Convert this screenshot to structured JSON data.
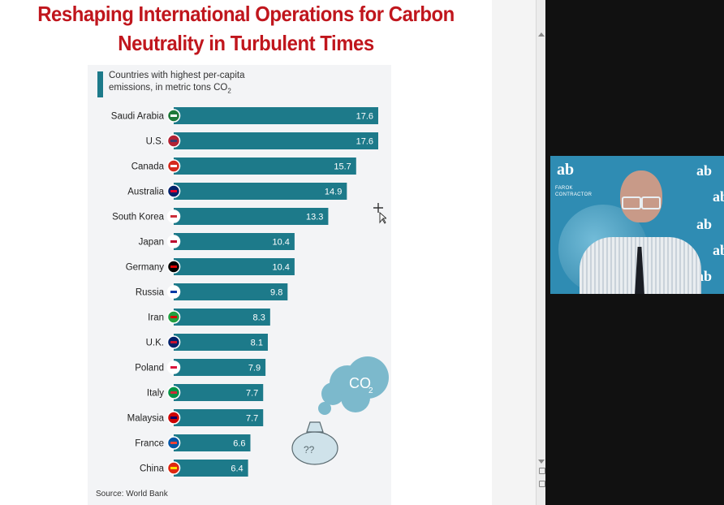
{
  "slide": {
    "title_line1": "Reshaping International Operations for Carbon",
    "title_line2": "Neutrality in Turbulent Times",
    "title_color": "#c0161d"
  },
  "chart_header": {
    "line1": "Countries with highest per-capita",
    "line2": "emissions, in metric tons CO",
    "subscript": "2"
  },
  "source": "Source: World Bank",
  "decoration": {
    "cloud_label": "CO",
    "cloud_sub": "2",
    "bag_label": "??"
  },
  "chart_data": {
    "type": "bar",
    "orientation": "horizontal",
    "bar_color": "#1d7a8a",
    "label_color": "#ffffff",
    "categories": [
      "Saudi Arabia",
      "U.S.",
      "Canada",
      "Australia",
      "South Korea",
      "Japan",
      "Germany",
      "Russia",
      "Iran",
      "U.K.",
      "Poland",
      "Italy",
      "Malaysia",
      "France",
      "China"
    ],
    "values": [
      17.6,
      17.6,
      15.7,
      14.9,
      13.3,
      10.4,
      10.4,
      9.8,
      8.3,
      8.1,
      7.9,
      7.7,
      7.7,
      6.6,
      6.4
    ],
    "flags": [
      "saudi-arabia",
      "usa",
      "canada",
      "australia",
      "south-korea",
      "japan",
      "germany",
      "russia",
      "iran",
      "uk",
      "poland",
      "italy",
      "malaysia",
      "france",
      "china"
    ],
    "xlim": [
      0,
      17.6
    ]
  },
  "video": {
    "logo_text": "ab",
    "brand_line1": "FAROK",
    "brand_line2": "CONTRACTOR",
    "accent": "#2f8cb3"
  }
}
